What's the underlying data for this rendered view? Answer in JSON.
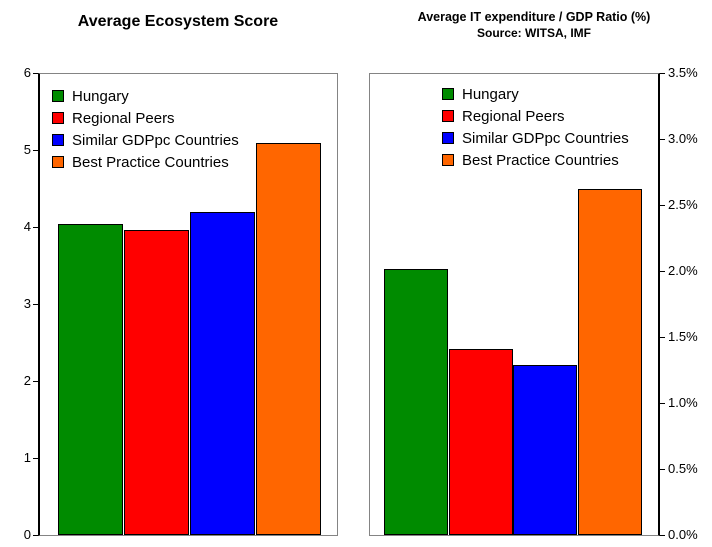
{
  "chart_data": [
    {
      "type": "bar",
      "title": "Average Ecosystem Score",
      "subtitle": "",
      "categories": [
        "Hungary",
        "Regional Peers",
        "Similar GDPpc Countries",
        "Best Practice Countries"
      ],
      "values": [
        4.05,
        3.97,
        4.2,
        5.1
      ],
      "colors": [
        "#008B00",
        "#FF0000",
        "#0000FF",
        "#FF6600"
      ],
      "xlabel": "",
      "ylabel": "",
      "ylim": [
        0,
        6
      ],
      "yticks": [
        "0",
        "1",
        "2",
        "3",
        "4",
        "5",
        "6"
      ],
      "axis_side": "left",
      "grid": "off",
      "legend_position": "inside-top-left"
    },
    {
      "type": "bar",
      "title": "Average IT expenditure / GDP Ratio (%)",
      "subtitle": "Source: WITSA, IMF",
      "categories": [
        "Hungary",
        "Regional Peers",
        "Similar GDPpc Countries",
        "Best Practice Countries"
      ],
      "values": [
        2.02,
        1.41,
        1.29,
        2.63
      ],
      "colors": [
        "#008B00",
        "#FF0000",
        "#0000FF",
        "#FF6600"
      ],
      "xlabel": "",
      "ylabel": "",
      "ylim": [
        0,
        3.5
      ],
      "yticks": [
        "0.0%",
        "0.5%",
        "1.0%",
        "1.5%",
        "2.0%",
        "2.5%",
        "3.0%",
        "3.5%"
      ],
      "axis_side": "right",
      "grid": "off",
      "legend_position": "inside-top-center"
    }
  ]
}
